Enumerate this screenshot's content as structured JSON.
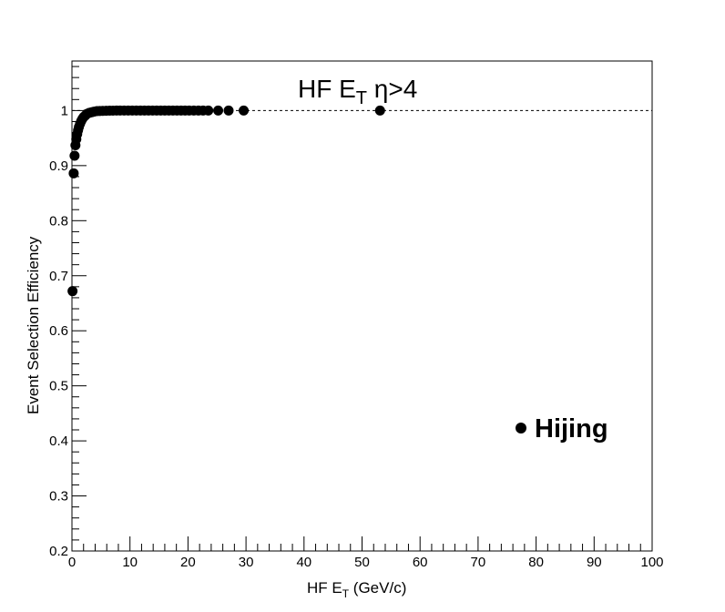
{
  "chart_data": {
    "type": "scatter",
    "title": {
      "prefix": "HF E",
      "sub": "T",
      "suffix": " η>4"
    },
    "xlabel": {
      "prefix": "HF E",
      "sub": "T",
      "suffix": " (GeV/c)"
    },
    "ylabel": "Event Selection Efficiency",
    "xlim": [
      0,
      100
    ],
    "ylim": [
      0.2,
      1.09
    ],
    "x_major_ticks": [
      0,
      10,
      20,
      30,
      40,
      50,
      60,
      70,
      80,
      90,
      100
    ],
    "y_major_ticks": [
      0.2,
      0.3,
      0.4,
      0.5,
      0.6,
      0.7,
      0.8,
      0.9,
      1
    ],
    "x_tick_labels": [
      "0",
      "10",
      "20",
      "30",
      "40",
      "50",
      "60",
      "70",
      "80",
      "90",
      "100"
    ],
    "y_tick_labels": [
      "0.2",
      "0.3",
      "0.4",
      "0.5",
      "0.6",
      "0.7",
      "0.8",
      "0.9",
      "1"
    ],
    "reference_line": {
      "y": 1.0,
      "style": "dashed"
    },
    "grid": false,
    "legend": {
      "position": "bottom-right",
      "entries": [
        "Hijing"
      ]
    },
    "series": [
      {
        "name": "Hijing",
        "x": [
          0.1,
          0.3,
          0.45,
          0.6,
          0.75,
          0.9,
          1.05,
          1.2,
          1.4,
          1.6,
          1.8,
          2.0,
          2.3,
          2.6,
          3.0,
          3.4,
          3.8,
          4.3,
          4.8,
          5.3,
          5.9,
          6.5,
          7.1,
          7.7,
          8.3,
          9.0,
          9.7,
          10.4,
          11.1,
          11.8,
          12.5,
          13.2,
          13.9,
          14.6,
          15.3,
          16.0,
          16.7,
          17.4,
          18.1,
          18.8,
          19.5,
          20.2,
          21.0,
          21.8,
          22.6,
          23.5,
          25.2,
          27.0,
          29.6,
          53.1
        ],
        "y": [
          0.672,
          0.886,
          0.918,
          0.937,
          0.948,
          0.957,
          0.964,
          0.97,
          0.976,
          0.981,
          0.985,
          0.988,
          0.991,
          0.994,
          0.996,
          0.997,
          0.998,
          0.999,
          0.9993,
          0.9995,
          0.9997,
          0.9998,
          0.9999,
          1.0,
          1.0,
          1.0,
          1.0,
          1.0,
          1.0,
          1.0,
          1.0,
          1.0,
          1.0,
          1.0,
          1.0,
          1.0,
          1.0,
          1.0,
          1.0,
          1.0,
          1.0,
          1.0,
          1.0,
          1.0,
          1.0,
          1.0,
          1.0,
          1.0,
          1.0,
          1.0
        ]
      }
    ],
    "colors": {
      "marker": "#000000",
      "axis": "#000000",
      "background": "#ffffff"
    }
  }
}
